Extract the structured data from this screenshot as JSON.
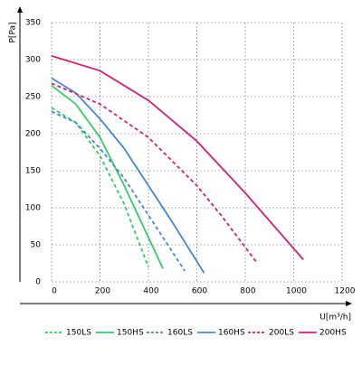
{
  "chart_data": {
    "type": "line",
    "y_label": "P[Pa]",
    "x_label": "U[m³/h]",
    "xlim": [
      0,
      1200
    ],
    "xticks": [
      0,
      200,
      400,
      600,
      800,
      1000,
      1200
    ],
    "ylim": [
      0,
      350
    ],
    "yticks": [
      0,
      50,
      100,
      150,
      200,
      250,
      300,
      350
    ],
    "grid": true,
    "legend": "bottom",
    "series": [
      {
        "name": "150LS",
        "color": "#33cc66",
        "dashed": true,
        "x": [
          0,
          100,
          200,
          300,
          400
        ],
        "values": [
          235,
          215,
          170,
          105,
          20
        ]
      },
      {
        "name": "150HS",
        "color": "#33cc66",
        "dashed": false,
        "x": [
          0,
          100,
          200,
          300,
          400,
          460
        ],
        "values": [
          265,
          240,
          195,
          130,
          60,
          18
        ]
      },
      {
        "name": "160LS",
        "color": "#4488cc",
        "dashed": true,
        "x": [
          0,
          100,
          200,
          300,
          400,
          550
        ],
        "values": [
          230,
          215,
          180,
          140,
          90,
          15
        ]
      },
      {
        "name": "160HS",
        "color": "#4488cc",
        "dashed": false,
        "x": [
          0,
          100,
          200,
          300,
          400,
          500,
          630
        ],
        "values": [
          275,
          255,
          220,
          180,
          130,
          80,
          12
        ]
      },
      {
        "name": "200LS",
        "color": "#cc2277",
        "dashed": true,
        "x": [
          0,
          200,
          400,
          600,
          700,
          850
        ],
        "values": [
          268,
          240,
          195,
          130,
          90,
          25
        ]
      },
      {
        "name": "200HS",
        "color": "#cc2277",
        "dashed": false,
        "x": [
          0,
          200,
          400,
          600,
          800,
          1040
        ],
        "values": [
          305,
          285,
          245,
          190,
          120,
          30
        ]
      }
    ]
  }
}
